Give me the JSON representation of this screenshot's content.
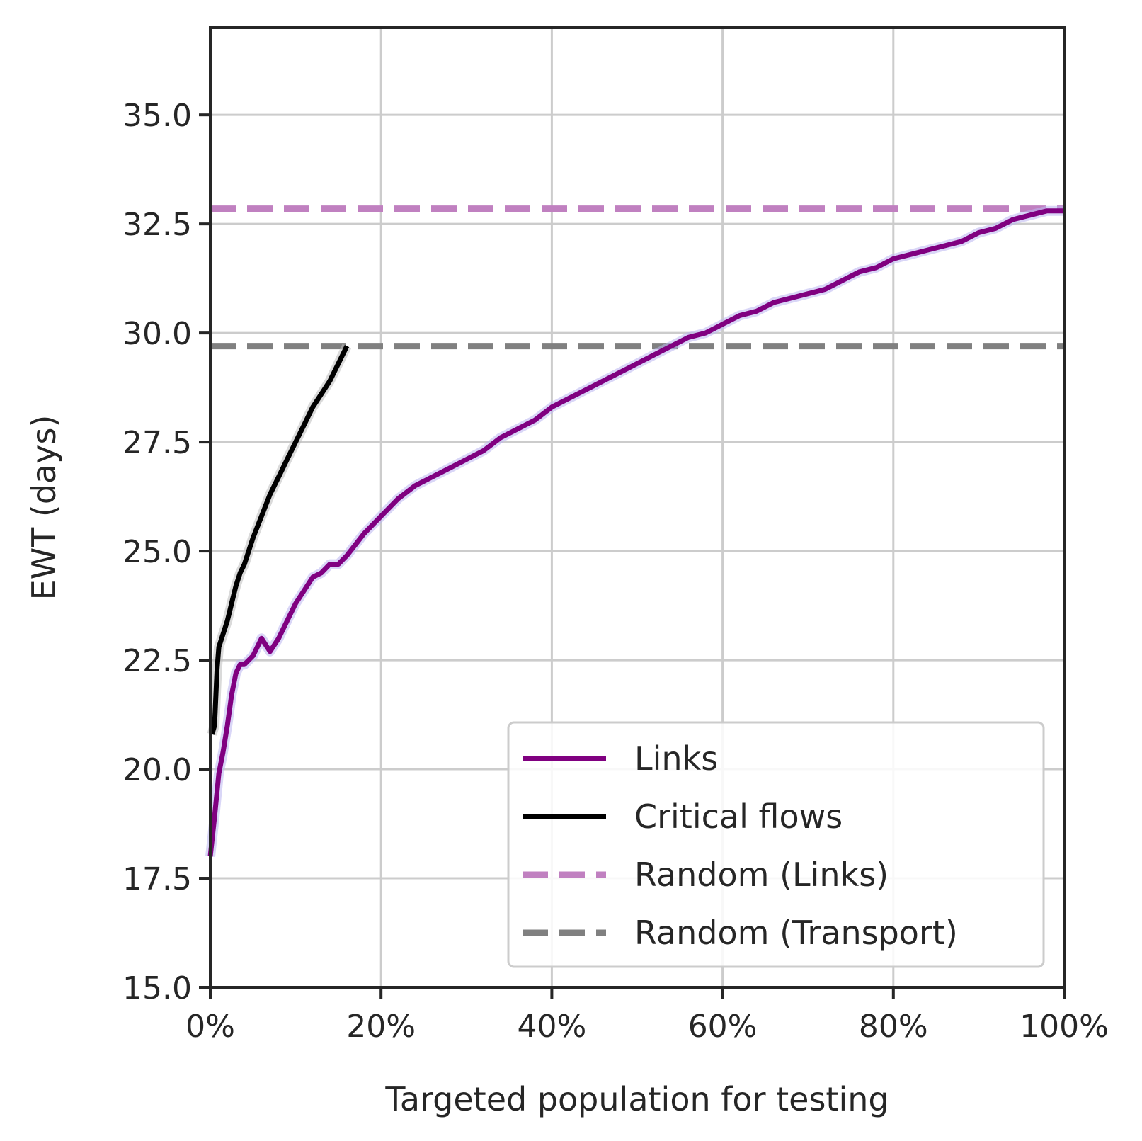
{
  "chart_data": {
    "type": "line",
    "xlabel": "Targeted population for testing",
    "ylabel": "EWT (days)",
    "xlim": [
      0,
      100
    ],
    "ylim": [
      15,
      37
    ],
    "x_unit": "%",
    "x_ticks": [
      0,
      20,
      40,
      60,
      80,
      100
    ],
    "x_tick_labels": [
      "0%",
      "20%",
      "40%",
      "60%",
      "80%",
      "100%"
    ],
    "y_ticks": [
      15.0,
      17.5,
      20.0,
      22.5,
      25.0,
      27.5,
      30.0,
      32.5,
      35.0
    ],
    "y_tick_labels": [
      "15.0",
      "17.5",
      "20.0",
      "22.5",
      "25.0",
      "27.5",
      "30.0",
      "32.5",
      "35.0"
    ],
    "grid": true,
    "legend_position": "lower-right",
    "series": [
      {
        "name": "Links",
        "style": "solid",
        "color": "#800080",
        "x": [
          0,
          0.5,
          1,
          1.5,
          2,
          2.5,
          3,
          3.5,
          4,
          5,
          6,
          7,
          8,
          9,
          10,
          11,
          12,
          13,
          14,
          15,
          16,
          18,
          20,
          22,
          24,
          26,
          28,
          30,
          32,
          34,
          36,
          38,
          40,
          42,
          44,
          46,
          48,
          50,
          52,
          54,
          56,
          58,
          60,
          62,
          64,
          66,
          68,
          70,
          72,
          74,
          76,
          78,
          80,
          82,
          84,
          86,
          88,
          90,
          92,
          94,
          96,
          98,
          100
        ],
        "y": [
          18.0,
          18.9,
          19.9,
          20.4,
          21.0,
          21.7,
          22.2,
          22.4,
          22.4,
          22.6,
          23.0,
          22.7,
          23.0,
          23.4,
          23.8,
          24.1,
          24.4,
          24.5,
          24.7,
          24.7,
          24.9,
          25.4,
          25.8,
          26.2,
          26.5,
          26.7,
          26.9,
          27.1,
          27.3,
          27.6,
          27.8,
          28.0,
          28.3,
          28.5,
          28.7,
          28.9,
          29.1,
          29.3,
          29.5,
          29.7,
          29.9,
          30.0,
          30.2,
          30.4,
          30.5,
          30.7,
          30.8,
          30.9,
          31.0,
          31.2,
          31.4,
          31.5,
          31.7,
          31.8,
          31.9,
          32.0,
          32.1,
          32.3,
          32.4,
          32.6,
          32.7,
          32.8,
          32.8
        ]
      },
      {
        "name": "Critical flows",
        "style": "solid",
        "color": "#000000",
        "x": [
          0.2,
          0.5,
          0.8,
          1,
          1.5,
          2,
          2.5,
          3,
          3.5,
          4,
          5,
          6,
          7,
          8,
          9,
          10,
          11,
          12,
          13,
          14,
          15,
          16
        ],
        "y": [
          20.8,
          21.0,
          22.3,
          22.8,
          23.1,
          23.4,
          23.8,
          24.2,
          24.5,
          24.7,
          25.3,
          25.8,
          26.3,
          26.7,
          27.1,
          27.5,
          27.9,
          28.3,
          28.6,
          28.9,
          29.3,
          29.7
        ]
      },
      {
        "name": "Random (Links)",
        "style": "dashed",
        "color": "#c080c0",
        "y_constant": 32.85
      },
      {
        "name": "Random (Transport)",
        "style": "dashed",
        "color": "#808080",
        "y_constant": 29.7
      }
    ]
  }
}
